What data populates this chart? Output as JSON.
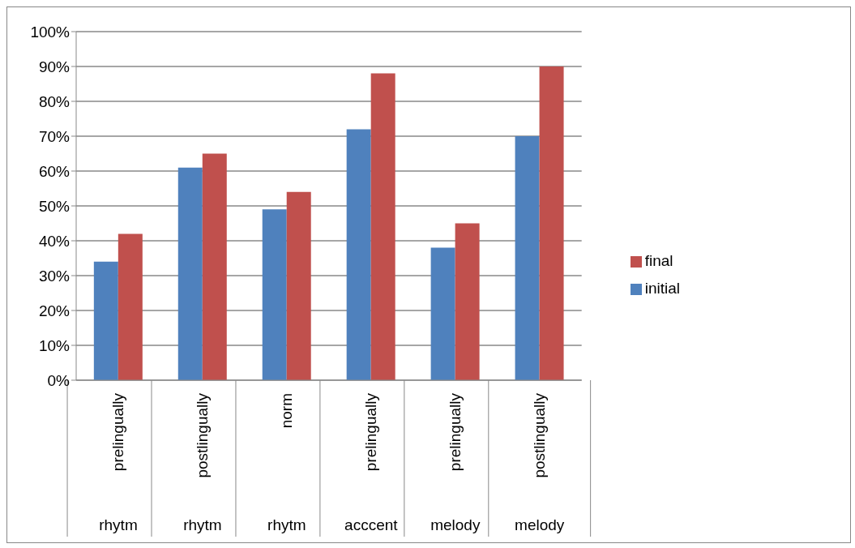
{
  "chart_data": {
    "type": "bar",
    "categories": [
      "prelingually",
      "postlingually",
      "norm",
      "prelingually",
      "prelingually",
      "postlingually"
    ],
    "annotations": [
      "rhytm",
      "rhytm",
      "rhytm",
      "acccent",
      "melody",
      "melody"
    ],
    "series": [
      {
        "name": "initial",
        "color": "#4f81bd",
        "values": [
          34,
          61,
          49,
          72,
          38,
          70
        ]
      },
      {
        "name": "final",
        "color": "#c0504d",
        "values": [
          42,
          65,
          54,
          88,
          45,
          90
        ]
      }
    ],
    "ylim": [
      0,
      100
    ],
    "yticks": [
      {
        "value": 0,
        "label": "0%"
      },
      {
        "value": 10,
        "label": "10%"
      },
      {
        "value": 20,
        "label": "20%"
      },
      {
        "value": 30,
        "label": "30%"
      },
      {
        "value": 40,
        "label": "40%"
      },
      {
        "value": 50,
        "label": "50%"
      },
      {
        "value": 60,
        "label": "60%"
      },
      {
        "value": 70,
        "label": "70%"
      },
      {
        "value": 80,
        "label": "80%"
      },
      {
        "value": 90,
        "label": "90%"
      },
      {
        "value": 100,
        "label": "100%"
      }
    ],
    "grid": "y",
    "legend": "right"
  }
}
